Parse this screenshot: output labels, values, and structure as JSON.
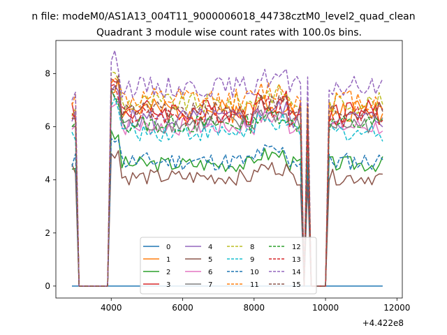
{
  "chart_data": {
    "type": "line",
    "title": "n file: modeM0/AS1A13_004T11_9000006018_44738cztM0_level2_quad_clean",
    "subtitle": "Quadrant 3 module wise count rates with 100.0s bins.",
    "xlabel": "",
    "ylabel": "",
    "x_offset_label": "+4.422e8",
    "xlim": [
      2450,
      12150
    ],
    "ylim": [
      -0.45,
      9.25
    ],
    "xticks": [
      4000,
      6000,
      8000,
      10000,
      12000
    ],
    "xtick_labels": [
      "4000",
      "6000",
      "8000",
      "10000",
      "12000"
    ],
    "yticks": [
      0,
      2,
      4,
      6,
      8
    ],
    "ytick_labels": [
      "0",
      "2",
      "4",
      "6",
      "8"
    ],
    "grid": false,
    "legend_position": "bottom-center",
    "legend_columns": 4,
    "x_range": [
      2900,
      11600
    ],
    "bin": 100,
    "gaps": [
      [
        3100,
        3900
      ],
      [
        9400,
        9400
      ],
      [
        9600,
        10000
      ]
    ],
    "series": [
      {
        "name": "0",
        "color": "#1f77b4",
        "dash": "solid",
        "level": 0,
        "amp": 0,
        "start": 0,
        "zero": true
      },
      {
        "name": "1",
        "color": "#ff7f0e",
        "dash": "solid",
        "level": 6.6,
        "amp": 0.45,
        "start": 6.3
      },
      {
        "name": "2",
        "color": "#2ca02c",
        "dash": "solid",
        "level": 4.6,
        "amp": 0.3,
        "start": 4.4
      },
      {
        "name": "3",
        "color": "#d62728",
        "dash": "solid",
        "level": 6.6,
        "amp": 0.45,
        "start": 6.9
      },
      {
        "name": "4",
        "color": "#9467bd",
        "dash": "solid",
        "level": 6.3,
        "amp": 0.4,
        "start": 6.2
      },
      {
        "name": "5",
        "color": "#8c564b",
        "dash": "solid",
        "level": 4.1,
        "amp": 0.3,
        "start": 4.6
      },
      {
        "name": "6",
        "color": "#e377c2",
        "dash": "solid",
        "level": 6.0,
        "amp": 0.35,
        "start": 5.9
      },
      {
        "name": "7",
        "color": "#7f7f7f",
        "dash": "solid",
        "level": 6.1,
        "amp": 0.35,
        "start": 6.0
      },
      {
        "name": "8",
        "color": "#bcbd22",
        "dash": "dash",
        "level": 6.9,
        "amp": 0.4,
        "start": 6.4
      },
      {
        "name": "9",
        "color": "#17becf",
        "dash": "dash",
        "level": 5.8,
        "amp": 0.35,
        "start": 5.8
      },
      {
        "name": "10",
        "color": "#1f77b4",
        "dash": "dash",
        "level": 4.7,
        "amp": 0.35,
        "start": 4.5
      },
      {
        "name": "11",
        "color": "#ff7f0e",
        "dash": "dash",
        "level": 7.0,
        "amp": 0.45,
        "start": 6.8
      },
      {
        "name": "12",
        "color": "#2ca02c",
        "dash": "dash",
        "level": 6.1,
        "amp": 0.35,
        "start": 6.0
      },
      {
        "name": "13",
        "color": "#d62728",
        "dash": "dash",
        "level": 6.4,
        "amp": 0.4,
        "start": 6.5
      },
      {
        "name": "14",
        "color": "#9467bd",
        "dash": "dash",
        "level": 7.5,
        "amp": 0.4,
        "start": 7.0
      },
      {
        "name": "15",
        "color": "#8c564b",
        "dash": "dash",
        "level": 6.6,
        "amp": 0.35,
        "start": 6.3
      }
    ]
  }
}
